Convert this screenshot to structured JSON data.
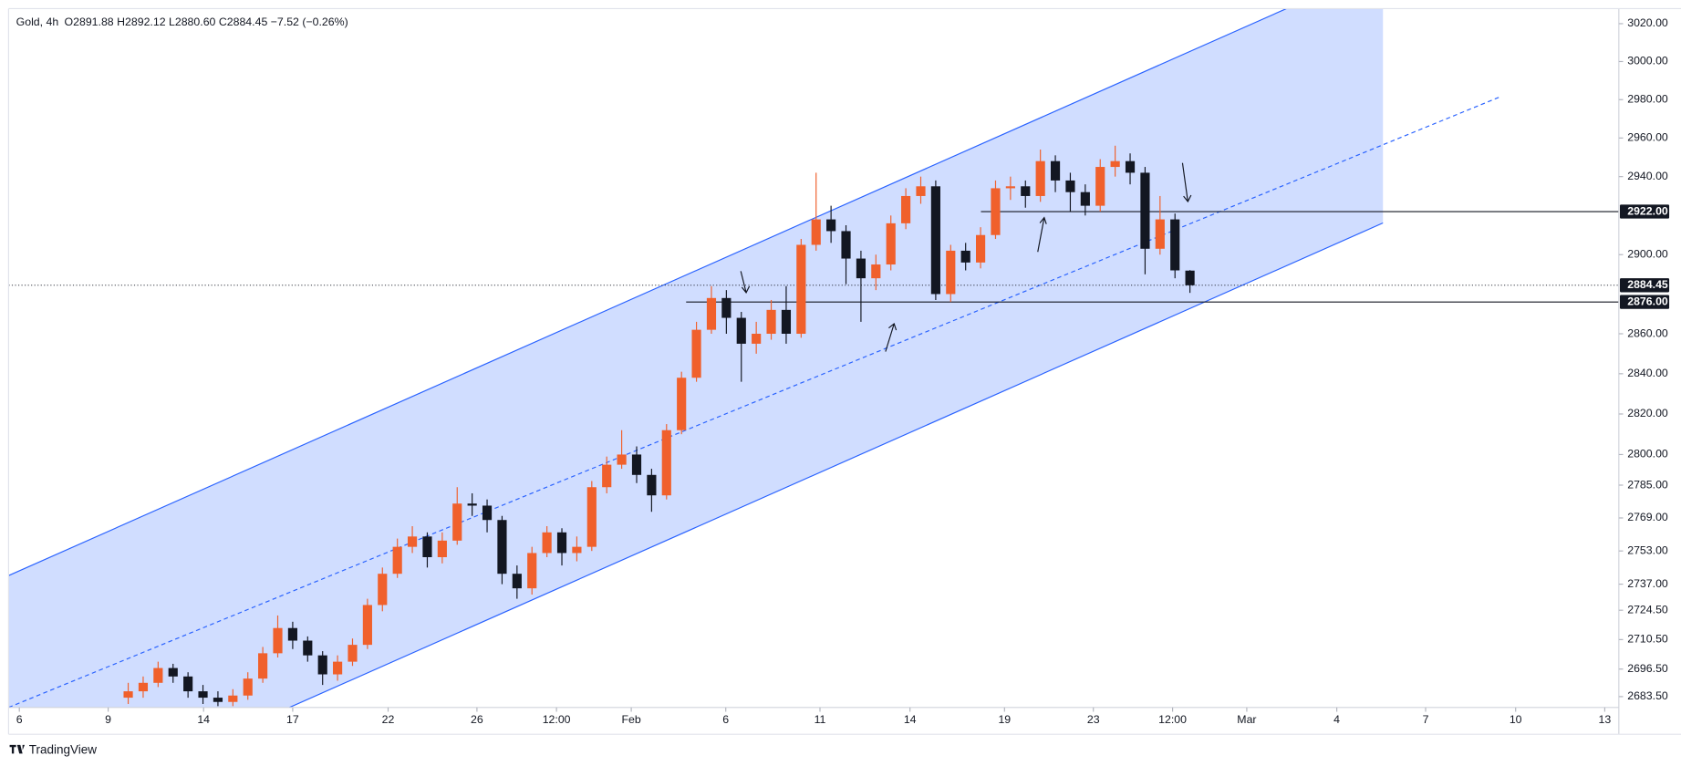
{
  "chart_data": {
    "type": "candlestick",
    "title": "Gold, 4h",
    "header_values": "O2891.88  H2892.12  L2880.60  C2884.45  −7.52 (−0.26%)",
    "brand": "TradingView",
    "yscale": "log",
    "ylim": [
      2678.4,
      3028
    ],
    "yticks": [
      {
        "value": 3020,
        "label": "3020.00"
      },
      {
        "value": 3000,
        "label": "3000.00"
      },
      {
        "value": 2980,
        "label": "2980.00"
      },
      {
        "value": 2960,
        "label": "2960.00"
      },
      {
        "value": 2940,
        "label": "2940.00"
      },
      {
        "value": 2900,
        "label": "2900.00"
      },
      {
        "value": 2860,
        "label": "2860.00"
      },
      {
        "value": 2840,
        "label": "2840.00"
      },
      {
        "value": 2820,
        "label": "2820.00"
      },
      {
        "value": 2800,
        "label": "2800.00"
      },
      {
        "value": 2785,
        "label": "2785.00"
      },
      {
        "value": 2769,
        "label": "2769.00"
      },
      {
        "value": 2753,
        "label": "2753.00"
      },
      {
        "value": 2737,
        "label": "2737.00"
      },
      {
        "value": 2724.5,
        "label": "2724.50"
      },
      {
        "value": 2710.5,
        "label": "2710.50"
      },
      {
        "value": 2696.5,
        "label": "2696.50"
      },
      {
        "value": 2683.5,
        "label": "2683.50"
      }
    ],
    "marked_levels": [
      {
        "value": 2922,
        "label": "2922.00"
      },
      {
        "value": 2876,
        "label": "2876.00"
      }
    ],
    "last_price": {
      "value": 2884.45,
      "label": "2884.45"
    },
    "xlim": [
      0,
      53.84
    ],
    "xticks": [
      {
        "value": 0.36,
        "label": "6"
      },
      {
        "value": 3.33,
        "label": "9"
      },
      {
        "value": 6.52,
        "label": "14"
      },
      {
        "value": 9.5,
        "label": "17"
      },
      {
        "value": 12.69,
        "label": "22"
      },
      {
        "value": 15.66,
        "label": "26"
      },
      {
        "value": 18.32,
        "label": "12:00"
      },
      {
        "value": 20.82,
        "label": "Feb"
      },
      {
        "value": 23.98,
        "label": "6"
      },
      {
        "value": 27.13,
        "label": "11"
      },
      {
        "value": 30.14,
        "label": "14"
      },
      {
        "value": 33.3,
        "label": "19"
      },
      {
        "value": 36.27,
        "label": "23"
      },
      {
        "value": 38.92,
        "label": "12:00"
      },
      {
        "value": 41.4,
        "label": "Mar"
      },
      {
        "value": 44.41,
        "label": "4"
      },
      {
        "value": 47.38,
        "label": "7"
      },
      {
        "value": 50.39,
        "label": "10"
      },
      {
        "value": 53.37,
        "label": "13"
      }
    ],
    "up_color": "#f0602c",
    "down_color": "#131722",
    "x": [
      4,
      4.5,
      5,
      5.5,
      6,
      6.5,
      7,
      7.5,
      8,
      8.5,
      9,
      9.5,
      10,
      10.5,
      11,
      11.5,
      12,
      12.5,
      13,
      13.5,
      14,
      14.5,
      15,
      15.5,
      16,
      16.5,
      17,
      17.5,
      18,
      18.5,
      19,
      19.5,
      20,
      20.5,
      21,
      21.5,
      22,
      22.5,
      23,
      23.5,
      24,
      24.5,
      25,
      25.5,
      26,
      26.5,
      27,
      27.5,
      28,
      28.5,
      29,
      29.5,
      30,
      30.5,
      31,
      31.5,
      32,
      32.5,
      33,
      33.5,
      34,
      34.5,
      35,
      35.5,
      36,
      36.5,
      37,
      37.5,
      38,
      38.5,
      39,
      39.5
    ],
    "open": [
      2683,
      2686,
      2690,
      2697,
      2693,
      2686,
      2683,
      2681,
      2684,
      2692,
      2704,
      2716,
      2710,
      2703,
      2694,
      2700,
      2708,
      2727,
      2742,
      2755,
      2760,
      2750,
      2758,
      2776,
      2775,
      2768,
      2742,
      2735,
      2752,
      2762,
      2752,
      2755,
      2784,
      2795,
      2800,
      2790,
      2780,
      2812,
      2838,
      2862,
      2878,
      2868,
      2855,
      2860,
      2872,
      2860,
      2905,
      2918,
      2912,
      2898,
      2888,
      2895,
      2916,
      2930,
      2935,
      2880,
      2902,
      2896,
      2910,
      2934,
      2935,
      2930,
      2948,
      2938,
      2932,
      2925,
      2945,
      2948,
      2942,
      2903,
      2918,
      2891.88
    ],
    "high": [
      2690,
      2693,
      2700,
      2699,
      2695,
      2689,
      2686,
      2687,
      2695,
      2707,
      2722,
      2719,
      2712,
      2705,
      2703,
      2711,
      2730,
      2745,
      2759,
      2765,
      2762,
      2762,
      2784,
      2781,
      2778,
      2770,
      2746,
      2755,
      2765,
      2764,
      2760,
      2787,
      2799,
      2812,
      2804,
      2793,
      2815,
      2841,
      2866,
      2884,
      2882,
      2871,
      2866,
      2877,
      2884,
      2908,
      2942,
      2925,
      2915,
      2902,
      2900,
      2920,
      2934,
      2940,
      2938,
      2905,
      2906,
      2914,
      2938,
      2940,
      2938,
      2954,
      2951,
      2942,
      2936,
      2949,
      2956,
      2952,
      2945,
      2930,
      2921,
      2892.12
    ],
    "low": [
      2680,
      2683,
      2688,
      2690,
      2683,
      2680,
      2679,
      2679,
      2682,
      2690,
      2702,
      2706,
      2700,
      2689,
      2691,
      2698,
      2706,
      2724,
      2740,
      2752,
      2745,
      2747,
      2756,
      2770,
      2762,
      2737,
      2730,
      2732,
      2750,
      2746,
      2748,
      2753,
      2781,
      2793,
      2786,
      2772,
      2778,
      2810,
      2836,
      2860,
      2860,
      2836,
      2850,
      2857,
      2855,
      2858,
      2902,
      2906,
      2885,
      2866,
      2882,
      2892,
      2913,
      2926,
      2877,
      2876,
      2892,
      2893,
      2908,
      2928,
      2924,
      2927,
      2932,
      2922,
      2920,
      2922,
      2940,
      2936,
      2890,
      2900,
      2888,
      2880.6
    ],
    "close": [
      2686,
      2690,
      2697,
      2693,
      2686,
      2683,
      2681,
      2684,
      2692,
      2704,
      2716,
      2710,
      2703,
      2694,
      2700,
      2708,
      2727,
      2742,
      2755,
      2760,
      2750,
      2758,
      2776,
      2775,
      2768,
      2742,
      2735,
      2752,
      2762,
      2752,
      2755,
      2784,
      2795,
      2800,
      2790,
      2780,
      2812,
      2838,
      2862,
      2878,
      2868,
      2855,
      2860,
      2872,
      2860,
      2905,
      2918,
      2912,
      2898,
      2888,
      2895,
      2916,
      2930,
      2935,
      2880,
      2902,
      2896,
      2910,
      2934,
      2935,
      2930,
      2948,
      2938,
      2932,
      2925,
      2945,
      2948,
      2942,
      2903,
      2918,
      2892,
      2884.45
    ]
  }
}
